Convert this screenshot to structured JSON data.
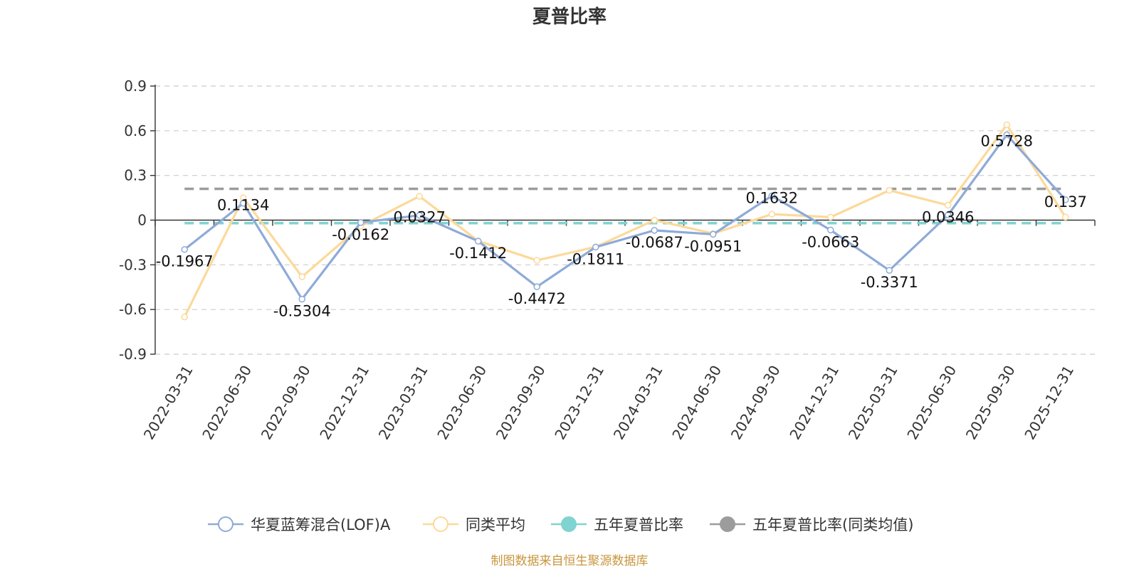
{
  "chart_data": {
    "type": "line",
    "title": "夏普比率",
    "categories": [
      "2022-03-31",
      "2022-06-30",
      "2022-09-30",
      "2022-12-31",
      "2023-03-31",
      "2023-06-30",
      "2023-09-30",
      "2023-12-31",
      "2024-03-31",
      "2024-06-30",
      "2024-09-30",
      "2024-12-31",
      "2025-03-31",
      "2025-06-30",
      "2025-09-30",
      "2025-12-31"
    ],
    "ylim": [
      -0.9,
      0.9
    ],
    "yticks": [
      0.9,
      0.6,
      0.3,
      0,
      -0.3,
      -0.6,
      -0.9
    ],
    "ytick_labels": [
      "0.9",
      "0.6",
      "0.3",
      "0",
      "-0.3",
      "-0.6",
      "-0.9"
    ],
    "grid": true,
    "legend_position": "bottom",
    "series": [
      {
        "name": "华夏蓝筹混合(LOF)A",
        "color": "#8eaad8",
        "values": [
          -0.1967,
          0.1134,
          -0.5304,
          -0.0162,
          0.0327,
          -0.1412,
          -0.4472,
          -0.1811,
          -0.0687,
          -0.0951,
          0.1632,
          -0.0663,
          -0.3371,
          0.0346,
          0.5728,
          0.137
        ],
        "labels": [
          "-0.1967",
          "0.1134",
          "-0.5304",
          "-0.0162",
          "0.0327",
          "-0.1412",
          "-0.4472",
          "-0.1811",
          "-0.0687",
          "-0.0951",
          "0.1632",
          "-0.0663",
          "-0.3371",
          "0.0346",
          "0.5728",
          "0.137"
        ]
      },
      {
        "name": "同类平均",
        "color": "#fcd99a",
        "values": [
          -0.65,
          0.15,
          -0.38,
          -0.04,
          0.16,
          -0.14,
          -0.27,
          -0.18,
          0.0,
          -0.09,
          0.04,
          0.02,
          0.2,
          0.1,
          0.64,
          0.02
        ]
      },
      {
        "name": "五年夏普比率",
        "color": "#7fd3d1",
        "constant": -0.02
      },
      {
        "name": "五年夏普比率(同类均值)",
        "color": "#9c9c9c",
        "constant": 0.21
      }
    ]
  },
  "footer": "制图数据来自恒生聚源数据库"
}
